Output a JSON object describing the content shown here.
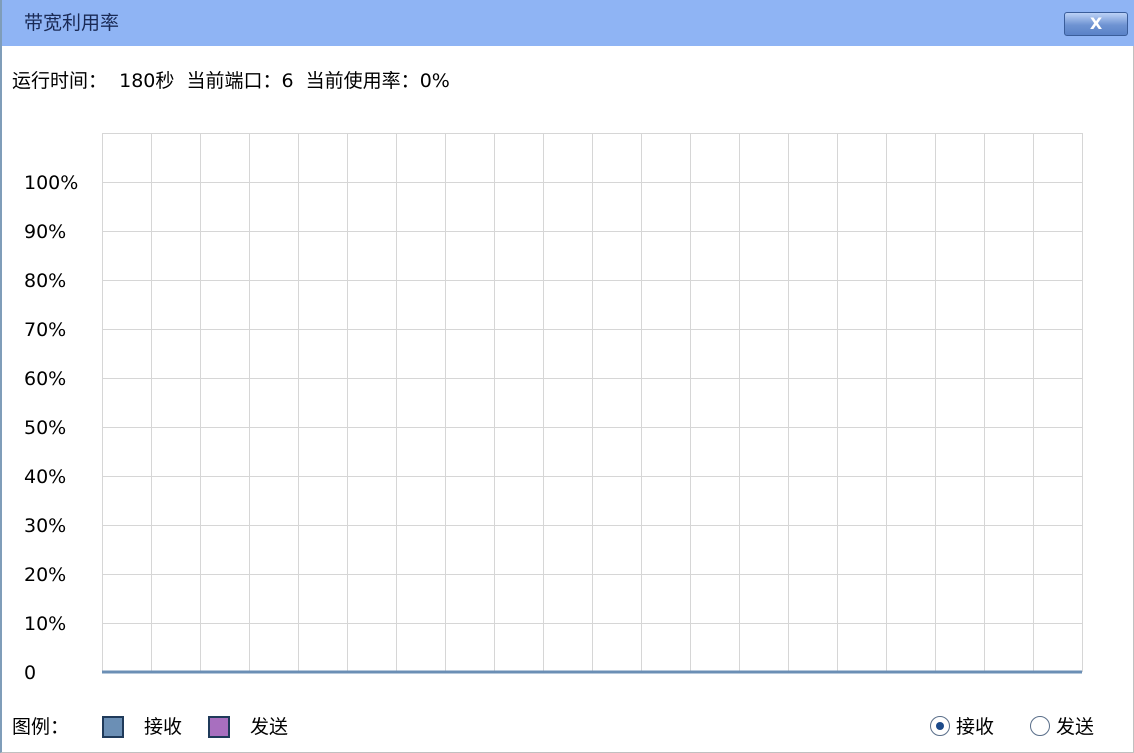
{
  "window": {
    "title": "带宽利用率",
    "close_label": "X"
  },
  "status": {
    "runtime_label": "运行时间：",
    "runtime_value": "180秒",
    "port_label": "当前端口：",
    "port_value": "6",
    "usage_label": "当前使用率：",
    "usage_value": "0%"
  },
  "chart_data": {
    "type": "line",
    "y_ticks": [
      "100%",
      "90%",
      "80%",
      "70%",
      "60%",
      "50%",
      "40%",
      "30%",
      "20%",
      "10%",
      "0"
    ],
    "ylim": [
      0,
      100
    ],
    "grid": true,
    "vertical_grid_lines": 20,
    "series": [
      {
        "name": "接收",
        "color": "#6b8fb5",
        "values": [
          0,
          0
        ]
      },
      {
        "name": "发送",
        "color": "#a86fbf",
        "values": []
      }
    ]
  },
  "legend": {
    "label": "图例：",
    "items": [
      {
        "label": "接收",
        "color": "#6b8fb5"
      },
      {
        "label": "发送",
        "color": "#a86fbf"
      }
    ]
  },
  "view_toggle": {
    "options": [
      {
        "label": "接收",
        "checked": true
      },
      {
        "label": "发送",
        "checked": false
      }
    ]
  }
}
